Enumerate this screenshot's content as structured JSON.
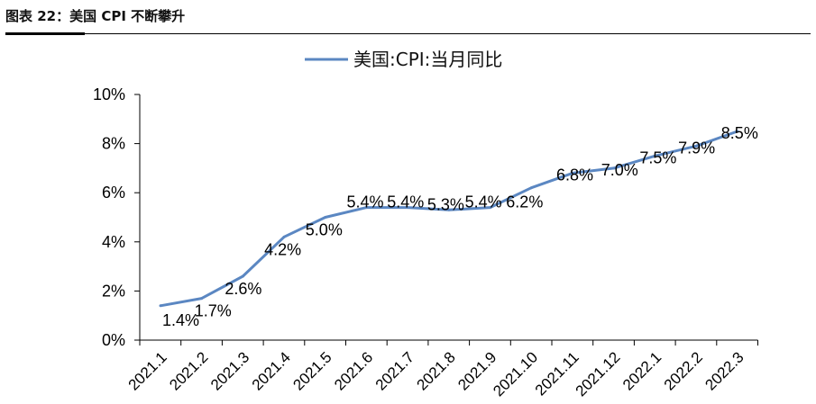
{
  "figure": {
    "title": "图表 22：美国 CPI 不断攀升"
  },
  "chart_data": {
    "type": "line",
    "title": "",
    "xlabel": "",
    "ylabel": "",
    "categories": [
      "2021.1",
      "2021.2",
      "2021.3",
      "2021.4",
      "2021.5",
      "2021.6",
      "2021.7",
      "2021.8",
      "2021.9",
      "2021.10",
      "2021.11",
      "2021.12",
      "2022.1",
      "2022.2",
      "2022.3"
    ],
    "series": [
      {
        "name": "美国:CPI:当月同比",
        "values": [
          1.4,
          1.7,
          2.6,
          4.2,
          5.0,
          5.4,
          5.4,
          5.3,
          5.4,
          6.2,
          6.8,
          7.0,
          7.5,
          7.9,
          8.5
        ],
        "data_labels": [
          "1.4%",
          "1.7%",
          "2.6%",
          "4.2%",
          "5.0%",
          "5.4%",
          "5.4%",
          "5.3%",
          "5.4%",
          "6.2%",
          "6.8%",
          "7.0%",
          "7.5%",
          "7.9%",
          "8.5%"
        ]
      }
    ],
    "ylim": [
      0,
      10
    ],
    "yticks": [
      0,
      2,
      4,
      6,
      8,
      10
    ],
    "ytick_labels": [
      "0%",
      "2%",
      "4%",
      "6%",
      "8%",
      "10%"
    ],
    "grid": false,
    "legend_position": "top-center",
    "line_color": "#5B87C2"
  }
}
